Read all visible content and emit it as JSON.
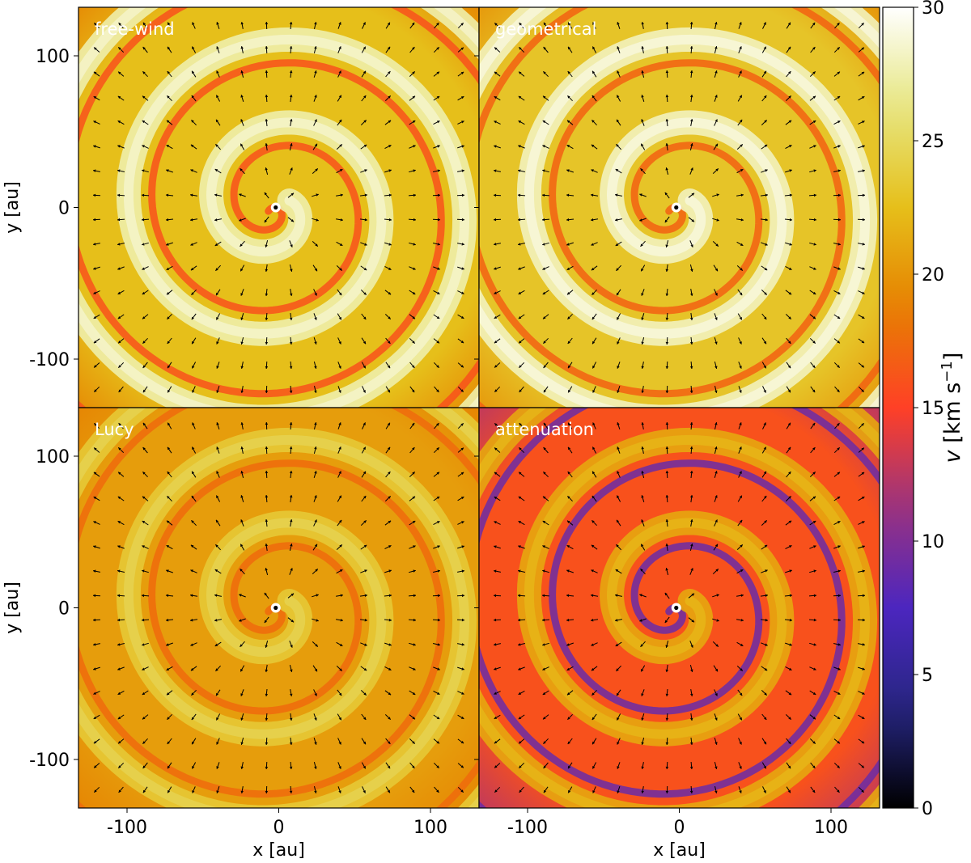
{
  "chart_data": {
    "type": "heatmap",
    "description_quantity": "velocity magnitude map with velocity direction arrows",
    "colormap": "CMRmap",
    "colorbar": {
      "label_prefix": "v [km s",
      "label_exponent": "−1",
      "label_suffix": "]",
      "range": [
        0,
        30
      ],
      "ticks": [
        "0",
        "5",
        "10",
        "15",
        "20",
        "25",
        "30"
      ]
    },
    "x_axis": {
      "label": "x [au]",
      "range": [
        -132,
        132
      ],
      "ticks": [
        -100,
        0,
        100
      ],
      "tick_labels": [
        "-100",
        "0",
        "100"
      ]
    },
    "y_axis": {
      "label": "y [au]",
      "range": [
        -132,
        132
      ],
      "ticks": [
        -100,
        0,
        100
      ],
      "tick_labels": [
        "-100",
        "0",
        "100"
      ]
    },
    "panels": [
      {
        "title": "free-wind",
        "base_velocity": 22.5,
        "arm_velocity": 27.5,
        "edge_velocity": 16.0
      },
      {
        "title": "geometrical",
        "base_velocity": 23.0,
        "arm_velocity": 28.0,
        "edge_velocity": 17.0
      },
      {
        "title": "Lucy",
        "base_velocity": 20.5,
        "arm_velocity": 23.5,
        "edge_velocity": 17.5
      },
      {
        "title": "attenuation",
        "base_velocity": 16.0,
        "arm_velocity": 21.0,
        "edge_velocity": 9.0
      }
    ],
    "spiral_arm_spacing_au": 55,
    "central_source_position_au": [
      -2,
      0
    ],
    "grid": false
  }
}
